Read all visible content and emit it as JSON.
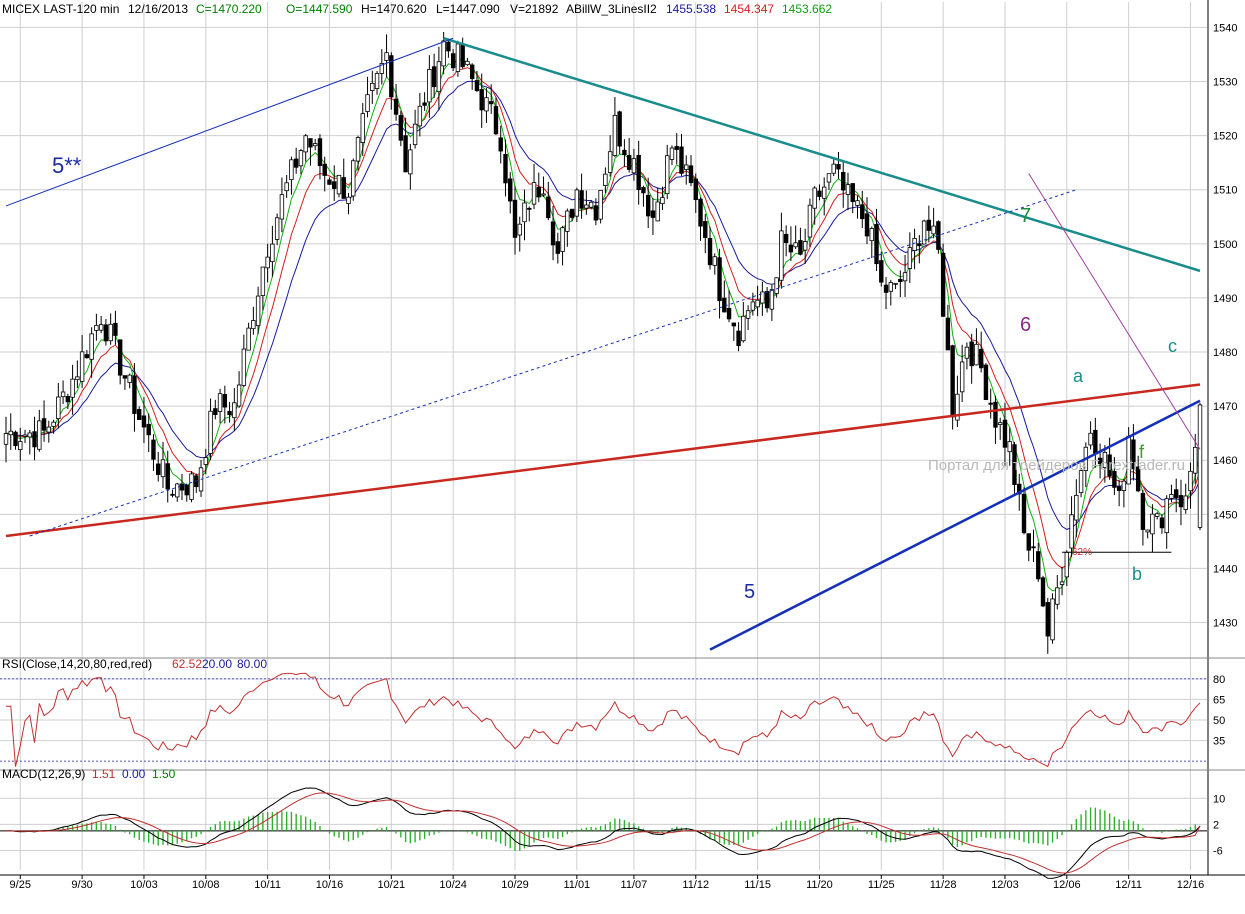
{
  "header": {
    "symbol": "MICEX LAST-120 min",
    "date": "12/16/2013",
    "close": "C=1470.220",
    "open": "O=1447.590",
    "high": "H=1470.620",
    "low": "L=1447.090",
    "volume": "V=21892",
    "indicator": "ABillW_3LinesII2",
    "ind_blue": "1455.538",
    "ind_red": "1454.347",
    "ind_green": "1453.662"
  },
  "colors": {
    "grid": "#cfcfcf",
    "candle": "#000000",
    "blue_ma": "#1a1a9a",
    "red_ma": "#d02020",
    "green_ma": "#10b010",
    "teal_line": "#1a8c8c",
    "red_trend": "#c8281e",
    "blue_trend": "#1530b8",
    "purple_line": "#a040a0",
    "rsi_line": "#c03030",
    "macd_hist": "#30b030"
  },
  "chart_data": [
    {
      "type": "candlestick",
      "title": "MICEX LAST-120 min",
      "y_ticks": [
        1430,
        1440,
        1450,
        1460,
        1470,
        1480,
        1490,
        1500,
        1510,
        1520,
        1530,
        1540
      ],
      "ylim": [
        1424,
        1541
      ],
      "x_tick_labels": [
        "9/25",
        "9/30",
        "10/03",
        "10/08",
        "10/11",
        "10/16",
        "10/21",
        "10/24",
        "10/29",
        "11/01",
        "11/07",
        "11/12",
        "11/15",
        "11/20",
        "11/25",
        "11/28",
        "12/03",
        "12/06",
        "12/11",
        "12/16"
      ],
      "close_path": [
        [
          0,
          1465
        ],
        [
          8,
          1465
        ],
        [
          14,
          1475
        ],
        [
          20,
          1487
        ],
        [
          24,
          1478
        ],
        [
          28,
          1468
        ],
        [
          34,
          1455
        ],
        [
          40,
          1456
        ],
        [
          44,
          1470
        ],
        [
          48,
          1470
        ],
        [
          52,
          1488
        ],
        [
          55,
          1500
        ],
        [
          58,
          1508
        ],
        [
          63,
          1520
        ],
        [
          67,
          1513
        ],
        [
          72,
          1510
        ],
        [
          76,
          1525
        ],
        [
          80,
          1535
        ],
        [
          84,
          1515
        ],
        [
          88,
          1527
        ],
        [
          92,
          1537
        ],
        [
          96,
          1533
        ],
        [
          100,
          1527
        ],
        [
          104,
          1520
        ],
        [
          107,
          1500
        ],
        [
          110,
          1508
        ],
        [
          113,
          1512
        ],
        [
          116,
          1498
        ],
        [
          120,
          1510
        ],
        [
          124,
          1507
        ],
        [
          128,
          1522
        ],
        [
          132,
          1515
        ],
        [
          136,
          1505
        ],
        [
          140,
          1518
        ],
        [
          144,
          1510
        ],
        [
          147,
          1502
        ],
        [
          150,
          1492
        ],
        [
          154,
          1484
        ],
        [
          157,
          1490
        ],
        [
          160,
          1488
        ],
        [
          163,
          1500
        ],
        [
          167,
          1497
        ],
        [
          170,
          1508
        ],
        [
          174,
          1513
        ],
        [
          177,
          1508
        ],
        [
          181,
          1504
        ],
        [
          184,
          1492
        ],
        [
          187,
          1491
        ],
        [
          190,
          1497
        ],
        [
          193,
          1505
        ],
        [
          196,
          1498
        ],
        [
          199,
          1470
        ],
        [
          202,
          1482
        ],
        [
          205,
          1477
        ],
        [
          208,
          1468
        ],
        [
          211,
          1462
        ],
        [
          214,
          1446
        ],
        [
          217,
          1440
        ],
        [
          219,
          1428
        ],
        [
          222,
          1440
        ],
        [
          225,
          1455
        ],
        [
          228,
          1466
        ],
        [
          231,
          1460
        ],
        [
          234,
          1452
        ],
        [
          236,
          1465
        ],
        [
          239,
          1450
        ],
        [
          242,
          1448
        ],
        [
          245,
          1455
        ],
        [
          248,
          1452
        ],
        [
          251,
          1470
        ]
      ],
      "series": [
        {
          "name": "ABillW_3LinesII2 blue",
          "last": 1455.538
        },
        {
          "name": "ABillW_3LinesII2 red",
          "last": 1454.347
        },
        {
          "name": "ABillW_3LinesII2 green",
          "last": 1453.662
        }
      ],
      "annotations": [
        {
          "text": "5**"
        },
        {
          "text": "7"
        },
        {
          "text": "6"
        },
        {
          "text": "5"
        },
        {
          "text": "a"
        },
        {
          "text": "b"
        },
        {
          "text": "c"
        },
        {
          "text": "f"
        },
        {
          "text": "62%"
        }
      ],
      "trendlines": [
        {
          "name": "teal 7",
          "from": [
            92,
            1538
          ],
          "to": [
            251,
            1495
          ]
        },
        {
          "name": "red",
          "from": [
            0,
            1446
          ],
          "to": [
            251,
            1474
          ]
        },
        {
          "name": "blue 5",
          "from": [
            148,
            1425
          ],
          "to": [
            251,
            1471
          ]
        },
        {
          "name": "blue 5**",
          "from": [
            0,
            1507
          ],
          "to": [
            94,
            1538
          ]
        },
        {
          "name": "purple 6",
          "from": [
            215,
            1513
          ],
          "to": [
            251,
            1462
          ]
        },
        {
          "name": "dotted blue",
          "from": [
            5,
            1446
          ],
          "to": [
            225,
            1510
          ]
        },
        {
          "name": "black 62%",
          "from": [
            222,
            1443
          ],
          "to": [
            245,
            1443
          ]
        }
      ],
      "watermark": "Портал для трейдеров Forextrader.ru"
    },
    {
      "type": "line",
      "title": "RSI(Close,14,20,80,red,red)",
      "values_shown": [
        "62.52",
        "20.00",
        "80.00"
      ],
      "y_ticks": [
        35,
        50,
        65,
        80
      ],
      "ylim": [
        15,
        85
      ],
      "levels": [
        20,
        80
      ],
      "last": 62.52
    },
    {
      "type": "line",
      "title": "MACD(12,26,9)",
      "values_shown": [
        "1.51",
        "0.00",
        "1.50"
      ],
      "y_ticks": [
        -6,
        2,
        10
      ],
      "ylim": [
        -12,
        15
      ],
      "last_macd": 1.51,
      "last_signal": 1.5
    }
  ]
}
